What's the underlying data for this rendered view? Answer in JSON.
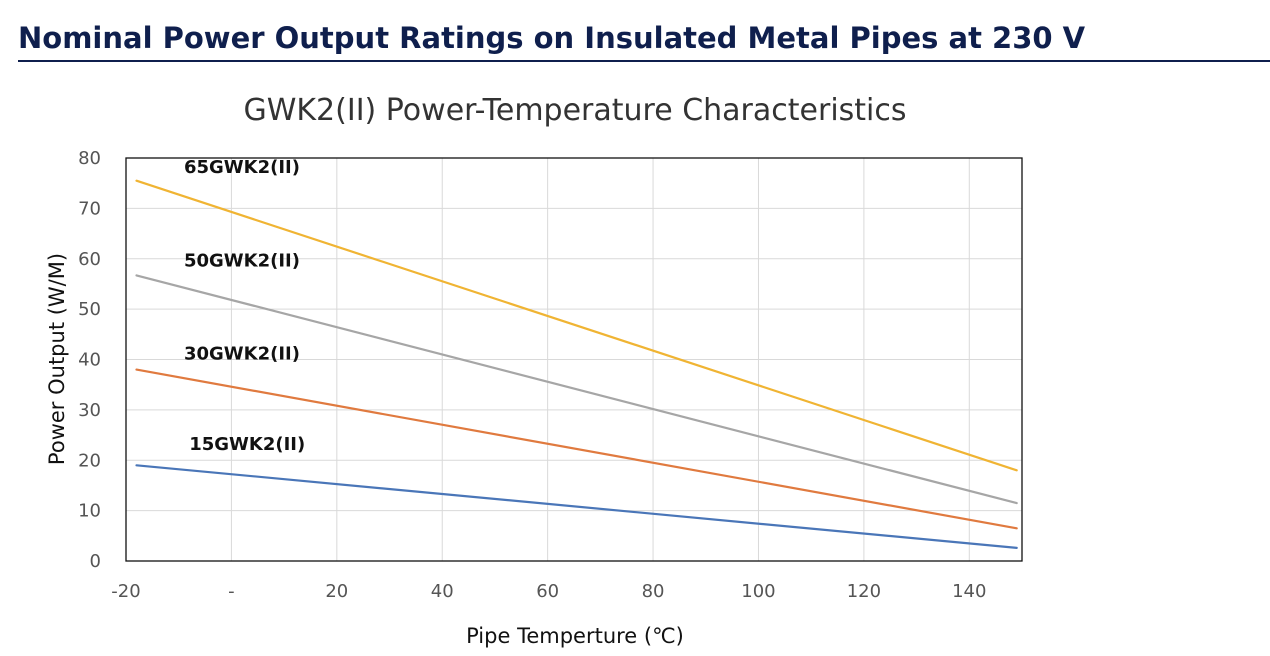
{
  "header": {
    "title": "Nominal Power Output Ratings on Insulated Metal Pipes at 230 V"
  },
  "chart_data": {
    "type": "line",
    "title": "GWK2(II) Power-Temperature Characteristics",
    "xlabel": "Pipe Temperture (℃)",
    "ylabel": "Power Output (W/M)",
    "xlim": [
      -20,
      150
    ],
    "ylim": [
      0,
      80
    ],
    "x_ticks": [
      {
        "value": -20,
        "label": "-20"
      },
      {
        "value": 0,
        "label": "-"
      },
      {
        "value": 20,
        "label": "20"
      },
      {
        "value": 40,
        "label": "40"
      },
      {
        "value": 60,
        "label": "60"
      },
      {
        "value": 80,
        "label": "80"
      },
      {
        "value": 100,
        "label": "100"
      },
      {
        "value": 120,
        "label": "120"
      },
      {
        "value": 140,
        "label": "140"
      }
    ],
    "y_ticks": [
      0,
      10,
      20,
      30,
      40,
      50,
      60,
      70,
      80
    ],
    "grid": true,
    "legend": "inline labels",
    "series": [
      {
        "name": "65GWK2(II)",
        "color": "#f0b433",
        "x": [
          -18,
          149
        ],
        "values": [
          75.5,
          18
        ],
        "label_anchor": [
          -9,
          77
        ]
      },
      {
        "name": "50GWK2(II)",
        "color": "#a6a6a6",
        "x": [
          -18,
          149
        ],
        "values": [
          56.7,
          11.5
        ],
        "label_anchor": [
          -9,
          58.5
        ]
      },
      {
        "name": "30GWK2(II)",
        "color": "#e07a3f",
        "x": [
          -18,
          149
        ],
        "values": [
          38,
          6.5
        ],
        "label_anchor": [
          -9,
          40
        ]
      },
      {
        "name": "15GWK2(II)",
        "color": "#4a76b8",
        "x": [
          -18,
          149
        ],
        "values": [
          19,
          2.6
        ],
        "label_anchor": [
          -8,
          22
        ]
      }
    ]
  }
}
